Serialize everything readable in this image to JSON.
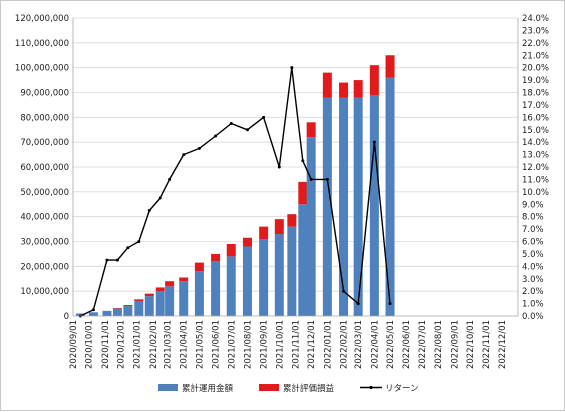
{
  "chart_data": {
    "type": "bar",
    "title": "",
    "xlabel": "",
    "ylabel": "",
    "ylim": [
      0,
      120000000
    ],
    "y2lim": [
      0,
      0.24
    ],
    "y_ticks": [
      "0",
      "10,000,000",
      "20,000,000",
      "30,000,000",
      "40,000,000",
      "50,000,000",
      "60,000,000",
      "70,000,000",
      "80,000,000",
      "90,000,000",
      "100,000,000",
      "110,000,000",
      "120,000,000"
    ],
    "y2_ticks": [
      "0.0%",
      "1.0%",
      "2.0%",
      "3.0%",
      "4.0%",
      "5.0%",
      "6.0%",
      "7.0%",
      "8.0%",
      "9.0%",
      "10.0%",
      "11.0%",
      "12.0%",
      "13.0%",
      "14.0%",
      "15.0%",
      "16.0%",
      "17.0%",
      "18.0%",
      "19.0%",
      "20.0%",
      "21.0%",
      "22.0%",
      "23.0%",
      "24.0%"
    ],
    "x_ticks": [
      "2020/09/01",
      "2020/10/01",
      "2020/11/01",
      "2020/12/01",
      "2021/01/01",
      "2021/02/01",
      "2021/03/01",
      "2021/04/01",
      "2021/05/01",
      "2021/06/01",
      "2021/07/01",
      "2021/08/01",
      "2021/09/01",
      "2021/10/01",
      "2021/11/01",
      "2021/12/01",
      "2022/01/01",
      "2022/02/01",
      "2022/03/01",
      "2022/04/01",
      "2022/05/01",
      "2022/06/01",
      "2022/07/01",
      "2022/08/01",
      "2022/09/01",
      "2022/10/01",
      "2022/11/01",
      "2022/12/01"
    ],
    "grid": true,
    "legend_position": "bottom",
    "colors": {
      "investment": "#4f81bd",
      "gain": "#e31a1c",
      "return_line": "#000000"
    },
    "x": [
      "2020/09/15",
      "2020/10/10",
      "2020/11/05",
      "2020/11/25",
      "2020/12/15",
      "2021/01/05",
      "2021/01/25",
      "2021/02/15",
      "2021/03/05",
      "2021/04/01",
      "2021/05/01",
      "2021/06/01",
      "2021/07/01",
      "2021/08/01",
      "2021/09/01",
      "2021/10/01",
      "2021/10/25",
      "2021/11/15",
      "2021/12/01",
      "2022/01/01",
      "2022/02/01",
      "2022/03/01",
      "2022/04/01",
      "2022/05/01"
    ],
    "series": [
      {
        "name": "累計運用金額",
        "values": [
          1000000,
          1500000,
          2000000,
          3000000,
          4000000,
          6000000,
          8000000,
          10000000,
          12000000,
          14000000,
          18000000,
          22000000,
          24000000,
          28000000,
          31000000,
          33000000,
          36000000,
          45000000,
          72000000,
          88000000,
          88000000,
          88000000,
          89000000,
          96000000
        ]
      },
      {
        "name": "累計評価損益",
        "values": [
          0,
          0,
          50000,
          200000,
          400000,
          700000,
          1000000,
          1500000,
          2000000,
          1500000,
          3500000,
          3000000,
          5000000,
          3500000,
          5000000,
          6000000,
          5000000,
          9000000,
          6000000,
          10000000,
          6000000,
          7000000,
          12000000,
          9000000
        ]
      },
      {
        "name": "リターン",
        "values": [
          0.0,
          0.005,
          0.045,
          0.045,
          0.055,
          0.06,
          0.085,
          0.095,
          0.11,
          0.13,
          0.135,
          0.145,
          0.155,
          0.15,
          0.16,
          0.12,
          0.2,
          0.125,
          0.11,
          0.11,
          0.02,
          0.01,
          0.14,
          0.01
        ]
      }
    ]
  }
}
